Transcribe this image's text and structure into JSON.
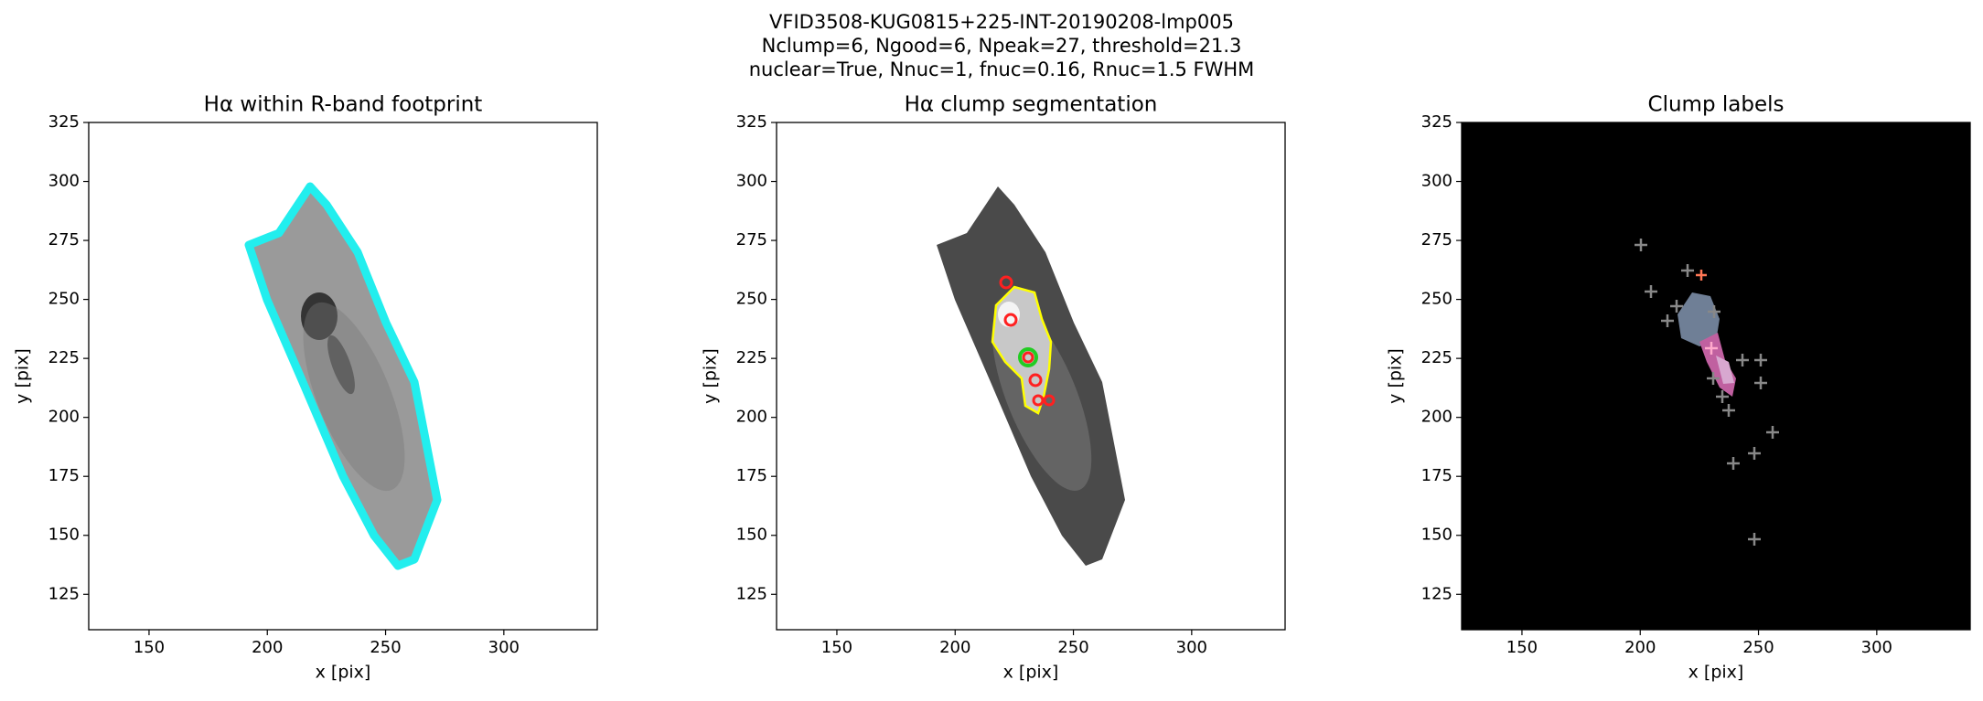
{
  "title_lines": [
    "VFID3508-KUG0815+225-INT-20190208-lmp005",
    "Nclump=6, Ngood=6, Npeak=27, threshold=21.3",
    "nuclear=True, Nnuc=1, fnuc=0.16, Rnuc=1.5 FWHM"
  ],
  "chart_data": [
    {
      "type": "image",
      "title": "Hα within R-band footprint",
      "xlabel": "x [pix]",
      "ylabel": "y [pix]",
      "xlim": [
        124.5,
        339.5
      ],
      "ylim": [
        110,
        325
      ],
      "xticks": [
        150,
        200,
        250,
        300
      ],
      "yticks": [
        125,
        150,
        175,
        200,
        225,
        250,
        275,
        300,
        325
      ]
    },
    {
      "type": "image",
      "title": "Hα clump segmentation",
      "xlabel": "x [pix]",
      "ylabel": "y [pix]",
      "xlim": [
        124.5,
        339.5
      ],
      "ylim": [
        110,
        325
      ],
      "xticks": [
        150,
        200,
        250,
        300
      ],
      "yticks": [
        125,
        150,
        175,
        200,
        225,
        250,
        275,
        300,
        325
      ]
    },
    {
      "type": "image",
      "title": "Clump labels",
      "xlabel": "x [pix]",
      "ylabel": "y [pix]",
      "xlim": [
        124.5,
        339.5
      ],
      "ylim": [
        110,
        325
      ],
      "xticks": [
        150,
        200,
        250,
        300
      ],
      "yticks": [
        125,
        150,
        175,
        200,
        225,
        250,
        275,
        300,
        325
      ]
    }
  ]
}
